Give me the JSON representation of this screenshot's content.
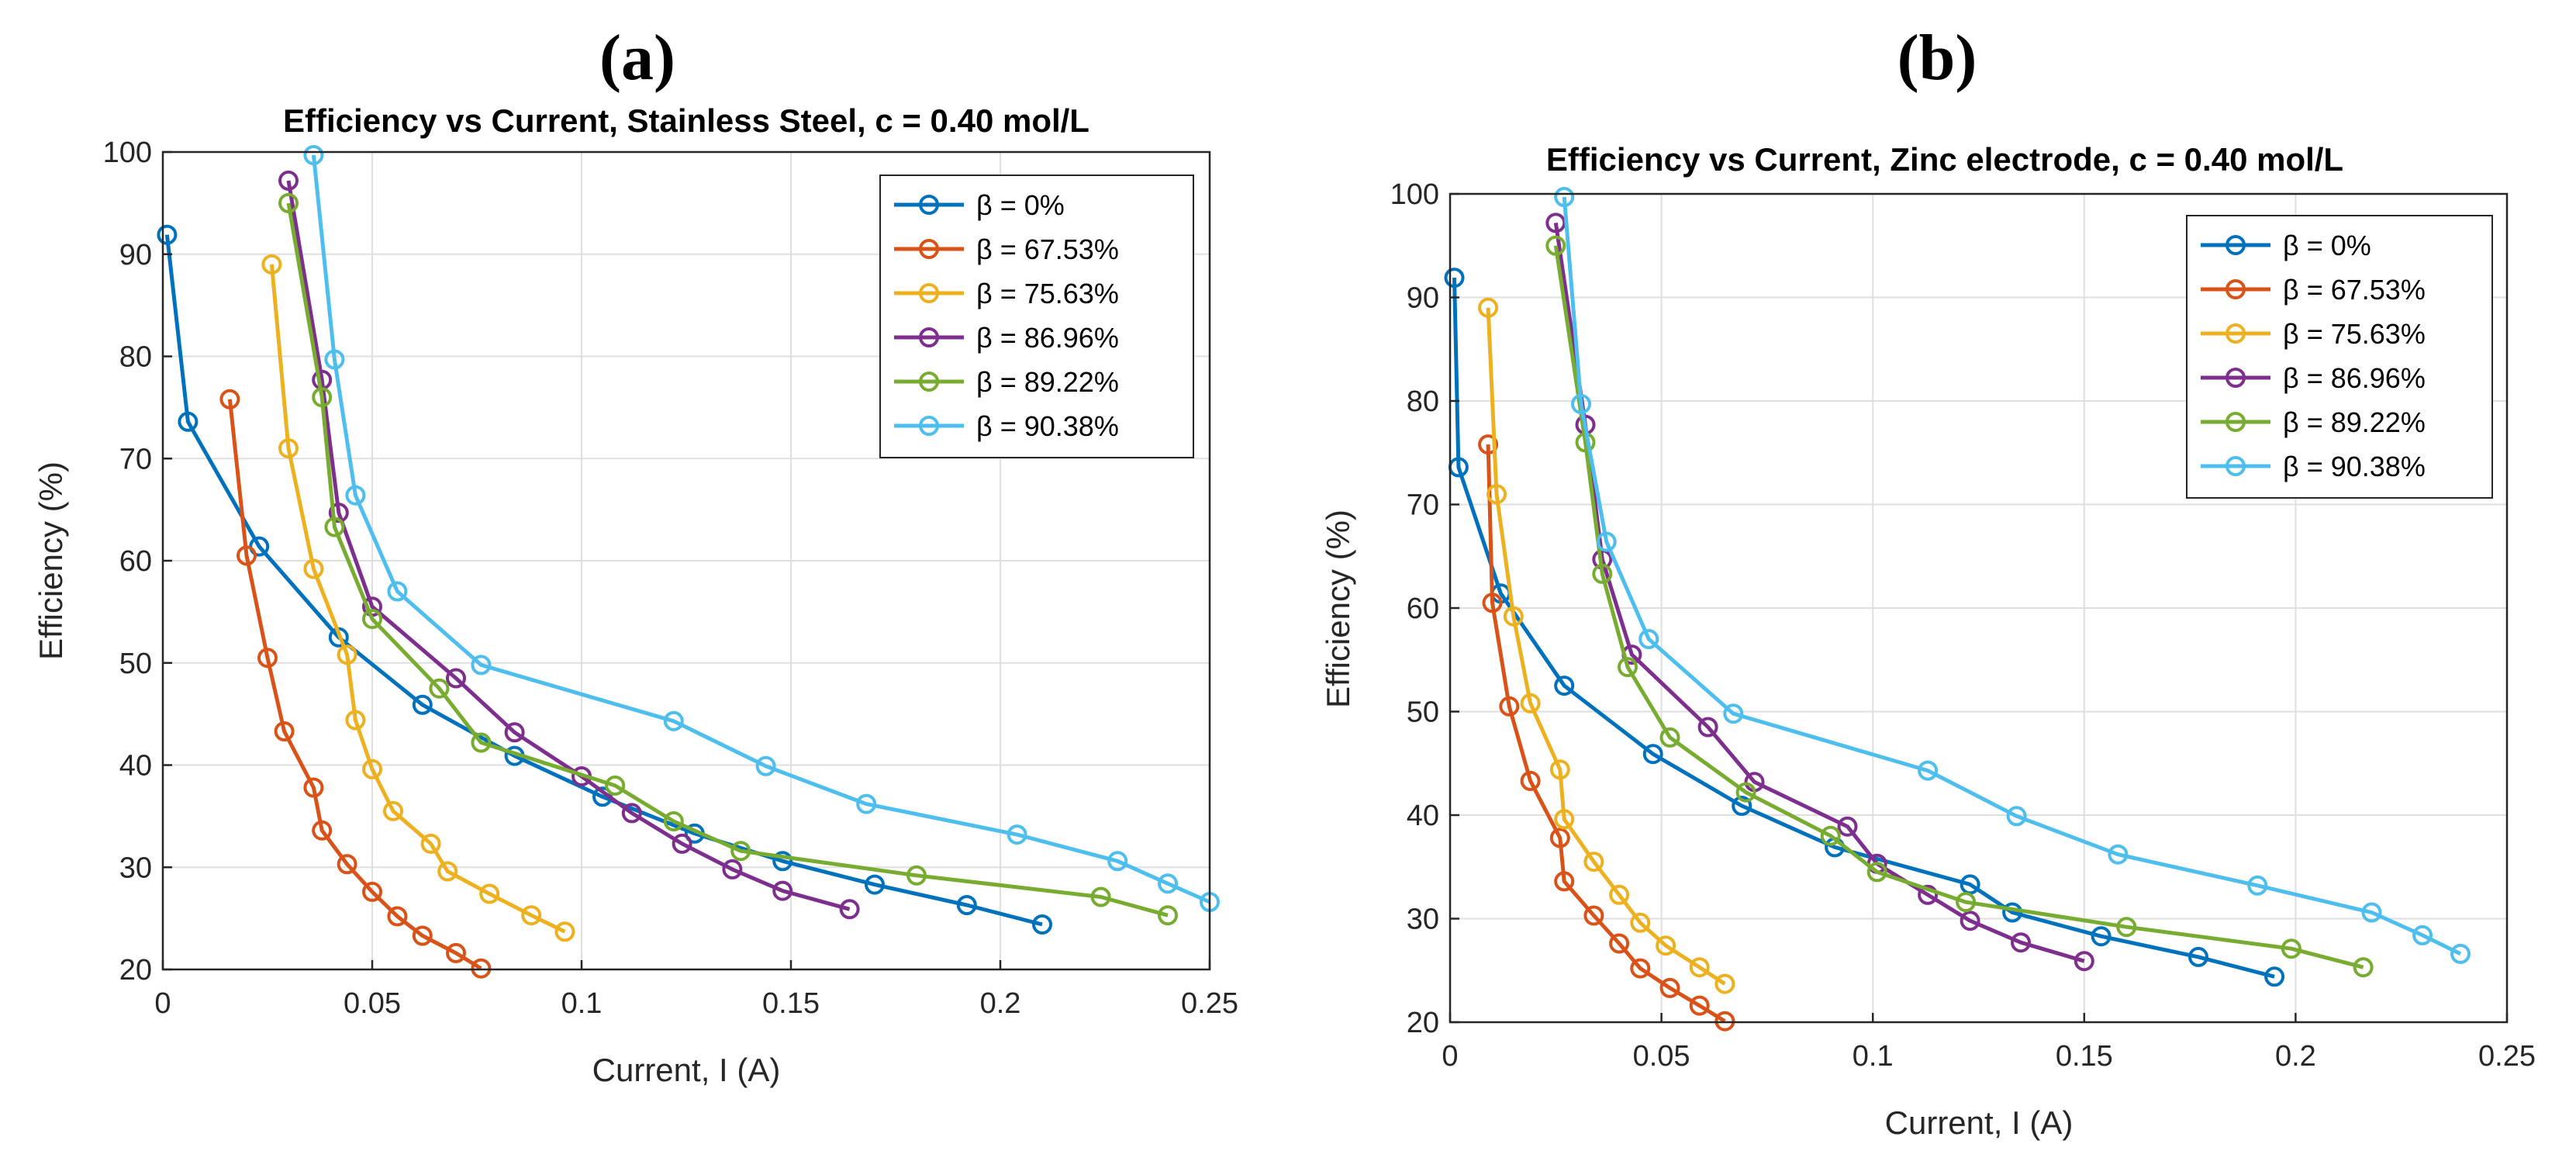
{
  "chart_data": [
    {
      "type": "line",
      "panel_label": "(a)",
      "title": "Efficiency vs Current, Stainless Steel, c = 0.40 mol/L",
      "xlabel": "Current, I (A)",
      "ylabel": "Efficiency (%)",
      "xlim": [
        0,
        0.25
      ],
      "ylim": [
        20,
        100
      ],
      "xticks": [
        0,
        0.05,
        0.1,
        0.15,
        0.2,
        0.25
      ],
      "xtick_labels": [
        "0",
        "0.05",
        "0.1",
        "0.15",
        "0.2",
        "0.25"
      ],
      "yticks": [
        20,
        30,
        40,
        50,
        60,
        70,
        80,
        90,
        100
      ],
      "ytick_labels": [
        "20",
        "30",
        "40",
        "50",
        "60",
        "70",
        "80",
        "90",
        "100"
      ],
      "grid": true,
      "legend_position": "top-right",
      "series": [
        {
          "name": "β = 0%",
          "color": "#0072BD",
          "points": [
            [
              0.001,
              91.9
            ],
            [
              0.006,
              73.6
            ],
            [
              0.023,
              61.4
            ],
            [
              0.042,
              52.5
            ],
            [
              0.062,
              45.9
            ],
            [
              0.084,
              40.9
            ],
            [
              0.105,
              36.9
            ],
            [
              0.127,
              33.3
            ],
            [
              0.148,
              30.6
            ],
            [
              0.17,
              28.3
            ],
            [
              0.192,
              26.3
            ],
            [
              0.21,
              24.4
            ]
          ]
        },
        {
          "name": "β = 67.53%",
          "color": "#D95319",
          "points": [
            [
              0.016,
              75.8
            ],
            [
              0.02,
              60.5
            ],
            [
              0.025,
              50.5
            ],
            [
              0.029,
              43.3
            ],
            [
              0.036,
              37.8
            ],
            [
              0.038,
              33.6
            ],
            [
              0.044,
              30.3
            ],
            [
              0.05,
              27.6
            ],
            [
              0.056,
              25.2
            ],
            [
              0.062,
              23.3
            ],
            [
              0.07,
              21.6
            ],
            [
              0.076,
              20.1
            ]
          ]
        },
        {
          "name": "β = 75.63%",
          "color": "#EDB120",
          "points": [
            [
              0.026,
              89.0
            ],
            [
              0.03,
              71.0
            ],
            [
              0.036,
              59.2
            ],
            [
              0.044,
              50.8
            ],
            [
              0.046,
              44.4
            ],
            [
              0.05,
              39.6
            ],
            [
              0.055,
              35.5
            ],
            [
              0.064,
              32.3
            ],
            [
              0.068,
              29.6
            ],
            [
              0.078,
              27.4
            ],
            [
              0.088,
              25.3
            ],
            [
              0.096,
              23.7
            ]
          ]
        },
        {
          "name": "β = 86.96%",
          "color": "#7E2F8E",
          "points": [
            [
              0.03,
              97.2
            ],
            [
              0.038,
              77.7
            ],
            [
              0.042,
              64.7
            ],
            [
              0.05,
              55.5
            ],
            [
              0.07,
              48.5
            ],
            [
              0.084,
              43.2
            ],
            [
              0.1,
              38.9
            ],
            [
              0.112,
              35.3
            ],
            [
              0.124,
              32.3
            ],
            [
              0.136,
              29.8
            ],
            [
              0.148,
              27.7
            ],
            [
              0.164,
              25.9
            ]
          ]
        },
        {
          "name": "β = 89.22%",
          "color": "#77AC30",
          "points": [
            [
              0.03,
              95.0
            ],
            [
              0.038,
              76.0
            ],
            [
              0.041,
              63.3
            ],
            [
              0.05,
              54.3
            ],
            [
              0.066,
              47.5
            ],
            [
              0.076,
              42.2
            ],
            [
              0.108,
              38.0
            ],
            [
              0.122,
              34.5
            ],
            [
              0.138,
              31.6
            ],
            [
              0.18,
              29.2
            ],
            [
              0.224,
              27.1
            ],
            [
              0.24,
              25.3
            ]
          ]
        },
        {
          "name": "β = 90.38%",
          "color": "#4DBEEE",
          "points": [
            [
              0.036,
              99.7
            ],
            [
              0.041,
              79.7
            ],
            [
              0.046,
              66.4
            ],
            [
              0.056,
              57.0
            ],
            [
              0.076,
              49.8
            ],
            [
              0.122,
              44.3
            ],
            [
              0.144,
              39.9
            ],
            [
              0.168,
              36.2
            ],
            [
              0.204,
              33.2
            ],
            [
              0.228,
              30.6
            ],
            [
              0.24,
              28.4
            ],
            [
              0.25,
              26.6
            ]
          ]
        }
      ]
    },
    {
      "type": "line",
      "panel_label": "(b)",
      "title": "Efficiency vs Current, Zinc electrode, c = 0.40 mol/L",
      "xlabel": "Current, I (A)",
      "ylabel": "Efficiency (%)",
      "xlim": [
        0,
        0.25
      ],
      "ylim": [
        20,
        100
      ],
      "xticks": [
        0,
        0.05,
        0.1,
        0.15,
        0.2,
        0.25
      ],
      "xtick_labels": [
        "0",
        "0.05",
        "0.1",
        "0.15",
        "0.2",
        "0.25"
      ],
      "yticks": [
        20,
        30,
        40,
        50,
        60,
        70,
        80,
        90,
        100
      ],
      "ytick_labels": [
        "20",
        "30",
        "40",
        "50",
        "60",
        "70",
        "80",
        "90",
        "100"
      ],
      "grid": true,
      "legend_position": "top-right",
      "series": [
        {
          "name": "β = 0%",
          "color": "#0072BD",
          "points": [
            [
              0.001,
              91.9
            ],
            [
              0.002,
              73.6
            ],
            [
              0.012,
              61.4
            ],
            [
              0.027,
              52.5
            ],
            [
              0.048,
              45.9
            ],
            [
              0.069,
              40.9
            ],
            [
              0.091,
              36.9
            ],
            [
              0.123,
              33.3
            ],
            [
              0.133,
              30.6
            ],
            [
              0.154,
              28.3
            ],
            [
              0.177,
              26.3
            ],
            [
              0.195,
              24.4
            ]
          ]
        },
        {
          "name": "β = 67.53%",
          "color": "#D95319",
          "points": [
            [
              0.009,
              75.8
            ],
            [
              0.01,
              60.5
            ],
            [
              0.014,
              50.5
            ],
            [
              0.019,
              43.3
            ],
            [
              0.026,
              37.8
            ],
            [
              0.027,
              33.6
            ],
            [
              0.034,
              30.3
            ],
            [
              0.04,
              27.6
            ],
            [
              0.045,
              25.2
            ],
            [
              0.052,
              23.3
            ],
            [
              0.059,
              21.6
            ],
            [
              0.065,
              20.1
            ]
          ]
        },
        {
          "name": "β = 75.63%",
          "color": "#EDB120",
          "points": [
            [
              0.009,
              89.0
            ],
            [
              0.011,
              71.0
            ],
            [
              0.015,
              59.2
            ],
            [
              0.019,
              50.8
            ],
            [
              0.026,
              44.4
            ],
            [
              0.027,
              39.6
            ],
            [
              0.034,
              35.5
            ],
            [
              0.04,
              32.3
            ],
            [
              0.045,
              29.6
            ],
            [
              0.051,
              27.4
            ],
            [
              0.059,
              25.3
            ],
            [
              0.065,
              23.7
            ]
          ]
        },
        {
          "name": "β = 86.96%",
          "color": "#7E2F8E",
          "points": [
            [
              0.025,
              97.2
            ],
            [
              0.032,
              77.7
            ],
            [
              0.036,
              64.7
            ],
            [
              0.043,
              55.5
            ],
            [
              0.061,
              48.5
            ],
            [
              0.072,
              43.2
            ],
            [
              0.094,
              38.9
            ],
            [
              0.101,
              35.3
            ],
            [
              0.113,
              32.3
            ],
            [
              0.123,
              29.8
            ],
            [
              0.135,
              27.7
            ],
            [
              0.15,
              25.9
            ]
          ]
        },
        {
          "name": "β = 89.22%",
          "color": "#77AC30",
          "points": [
            [
              0.025,
              95.0
            ],
            [
              0.032,
              76.0
            ],
            [
              0.036,
              63.3
            ],
            [
              0.042,
              54.3
            ],
            [
              0.052,
              47.5
            ],
            [
              0.07,
              42.2
            ],
            [
              0.09,
              38.0
            ],
            [
              0.101,
              34.5
            ],
            [
              0.122,
              31.6
            ],
            [
              0.16,
              29.2
            ],
            [
              0.199,
              27.1
            ],
            [
              0.216,
              25.3
            ]
          ]
        },
        {
          "name": "β = 90.38%",
          "color": "#4DBEEE",
          "points": [
            [
              0.027,
              99.7
            ],
            [
              0.031,
              79.7
            ],
            [
              0.037,
              66.4
            ],
            [
              0.047,
              57.0
            ],
            [
              0.067,
              49.8
            ],
            [
              0.113,
              44.3
            ],
            [
              0.134,
              39.9
            ],
            [
              0.158,
              36.2
            ],
            [
              0.191,
              33.2
            ],
            [
              0.218,
              30.6
            ],
            [
              0.23,
              28.4
            ],
            [
              0.239,
              26.6
            ]
          ]
        }
      ]
    }
  ]
}
